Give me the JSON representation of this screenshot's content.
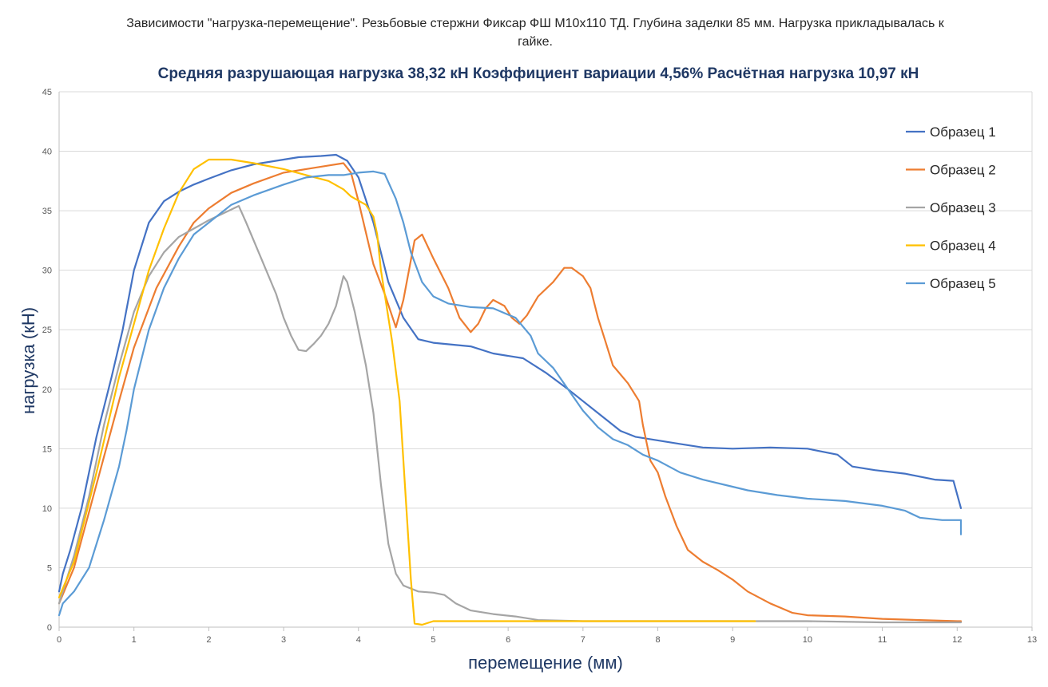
{
  "chart_data": {
    "type": "line",
    "title": "Зависимости \"нагрузка-перемещение\". Резьбовые стержни Фиксар ФШ М10х110 ТД. Глубина заделки 85 мм. Нагрузка прикладывалась к гайке.",
    "subtitle": "Средняя разрушающая нагрузка 38,32 кН  Коэффициент вариации 4,56%  Расчётная нагрузка 10,97 кН",
    "xlabel": "перемещение (мм)",
    "ylabel": "нагрузка (кН)",
    "xlim": [
      0,
      13
    ],
    "ylim": [
      0,
      45
    ],
    "xticks": [
      "0",
      "1",
      "2",
      "3",
      "4",
      "5",
      "6",
      "7",
      "8",
      "9",
      "10",
      "11",
      "12",
      "13"
    ],
    "yticks": [
      "0",
      "5",
      "10",
      "15",
      "20",
      "25",
      "30",
      "35",
      "40",
      "45"
    ],
    "grid": "horizontal",
    "legend_position": "right",
    "series": [
      {
        "name": "Образец 1",
        "color": "#4472c4",
        "points": [
          [
            0,
            3.0
          ],
          [
            0.05,
            4.5
          ],
          [
            0.15,
            6.5
          ],
          [
            0.3,
            10
          ],
          [
            0.5,
            16
          ],
          [
            0.7,
            21
          ],
          [
            0.85,
            25
          ],
          [
            1.0,
            30
          ],
          [
            1.2,
            34
          ],
          [
            1.4,
            35.8
          ],
          [
            1.6,
            36.6
          ],
          [
            1.8,
            37.2
          ],
          [
            2.0,
            37.7
          ],
          [
            2.3,
            38.4
          ],
          [
            2.6,
            38.9
          ],
          [
            3.0,
            39.3
          ],
          [
            3.2,
            39.5
          ],
          [
            3.5,
            39.6
          ],
          [
            3.7,
            39.7
          ],
          [
            3.85,
            39.2
          ],
          [
            4.0,
            37.8
          ],
          [
            4.2,
            34.0
          ],
          [
            4.4,
            29.0
          ],
          [
            4.6,
            26.0
          ],
          [
            4.8,
            24.2
          ],
          [
            5.0,
            23.9
          ],
          [
            5.5,
            23.6
          ],
          [
            5.8,
            23.0
          ],
          [
            6.2,
            22.6
          ],
          [
            6.5,
            21.4
          ],
          [
            6.8,
            20.0
          ],
          [
            7.0,
            19.0
          ],
          [
            7.3,
            17.5
          ],
          [
            7.5,
            16.5
          ],
          [
            7.7,
            16.0
          ],
          [
            8.0,
            15.7
          ],
          [
            8.3,
            15.4
          ],
          [
            8.6,
            15.1
          ],
          [
            9.0,
            15.0
          ],
          [
            9.5,
            15.1
          ],
          [
            10.0,
            15.0
          ],
          [
            10.4,
            14.5
          ],
          [
            10.6,
            13.5
          ],
          [
            10.9,
            13.2
          ],
          [
            11.3,
            12.9
          ],
          [
            11.7,
            12.4
          ],
          [
            11.95,
            12.3
          ],
          [
            12.05,
            10.0
          ]
        ]
      },
      {
        "name": "Образец 2",
        "color": "#ed7d31",
        "points": [
          [
            0,
            2.0
          ],
          [
            0.2,
            5.0
          ],
          [
            0.5,
            12
          ],
          [
            0.8,
            19
          ],
          [
            1.0,
            23.5
          ],
          [
            1.3,
            28.5
          ],
          [
            1.6,
            32
          ],
          [
            1.8,
            34
          ],
          [
            2.0,
            35.2
          ],
          [
            2.3,
            36.5
          ],
          [
            2.6,
            37.3
          ],
          [
            3.0,
            38.2
          ],
          [
            3.3,
            38.5
          ],
          [
            3.6,
            38.8
          ],
          [
            3.8,
            39.0
          ],
          [
            3.9,
            38.2
          ],
          [
            4.0,
            35.8
          ],
          [
            4.2,
            30.5
          ],
          [
            4.35,
            28.0
          ],
          [
            4.5,
            25.2
          ],
          [
            4.6,
            27.5
          ],
          [
            4.75,
            32.5
          ],
          [
            4.85,
            33.0
          ],
          [
            5.0,
            31.0
          ],
          [
            5.2,
            28.5
          ],
          [
            5.35,
            26.0
          ],
          [
            5.5,
            24.8
          ],
          [
            5.6,
            25.5
          ],
          [
            5.7,
            26.8
          ],
          [
            5.8,
            27.5
          ],
          [
            5.95,
            27.0
          ],
          [
            6.05,
            26.0
          ],
          [
            6.15,
            25.5
          ],
          [
            6.25,
            26.2
          ],
          [
            6.4,
            27.8
          ],
          [
            6.6,
            29.0
          ],
          [
            6.75,
            30.2
          ],
          [
            6.85,
            30.2
          ],
          [
            7.0,
            29.5
          ],
          [
            7.1,
            28.5
          ],
          [
            7.2,
            26.0
          ],
          [
            7.3,
            24.0
          ],
          [
            7.4,
            22.0
          ],
          [
            7.6,
            20.5
          ],
          [
            7.75,
            19.0
          ],
          [
            7.8,
            17.0
          ],
          [
            7.9,
            14.0
          ],
          [
            8.0,
            13.0
          ],
          [
            8.1,
            11.0
          ],
          [
            8.25,
            8.5
          ],
          [
            8.4,
            6.5
          ],
          [
            8.6,
            5.5
          ],
          [
            8.8,
            4.8
          ],
          [
            9.0,
            4.0
          ],
          [
            9.2,
            3.0
          ],
          [
            9.5,
            2.0
          ],
          [
            9.8,
            1.2
          ],
          [
            10.0,
            1.0
          ],
          [
            10.5,
            0.9
          ],
          [
            11.0,
            0.7
          ],
          [
            11.5,
            0.6
          ],
          [
            12.0,
            0.5
          ],
          [
            12.05,
            0.5
          ]
        ]
      },
      {
        "name": "Образец 3",
        "color": "#a5a5a5",
        "points": [
          [
            0,
            2.0
          ],
          [
            0.2,
            6.0
          ],
          [
            0.4,
            11
          ],
          [
            0.6,
            17
          ],
          [
            0.8,
            22
          ],
          [
            1.0,
            26.5
          ],
          [
            1.2,
            29.5
          ],
          [
            1.4,
            31.5
          ],
          [
            1.6,
            32.8
          ],
          [
            1.8,
            33.5
          ],
          [
            2.0,
            34.2
          ],
          [
            2.2,
            34.8
          ],
          [
            2.4,
            35.4
          ],
          [
            2.5,
            34.0
          ],
          [
            2.7,
            31.0
          ],
          [
            2.9,
            28.0
          ],
          [
            3.0,
            26.0
          ],
          [
            3.1,
            24.5
          ],
          [
            3.2,
            23.3
          ],
          [
            3.3,
            23.2
          ],
          [
            3.4,
            23.8
          ],
          [
            3.5,
            24.5
          ],
          [
            3.6,
            25.5
          ],
          [
            3.7,
            27.0
          ],
          [
            3.8,
            29.5
          ],
          [
            3.85,
            29.0
          ],
          [
            3.95,
            26.5
          ],
          [
            4.1,
            22.0
          ],
          [
            4.2,
            18.0
          ],
          [
            4.3,
            12.0
          ],
          [
            4.4,
            7.0
          ],
          [
            4.5,
            4.5
          ],
          [
            4.6,
            3.5
          ],
          [
            4.8,
            3.0
          ],
          [
            5.0,
            2.9
          ],
          [
            5.15,
            2.7
          ],
          [
            5.3,
            2.0
          ],
          [
            5.5,
            1.4
          ],
          [
            5.8,
            1.1
          ],
          [
            6.1,
            0.9
          ],
          [
            6.4,
            0.6
          ],
          [
            7.0,
            0.5
          ],
          [
            8.0,
            0.5
          ],
          [
            9.0,
            0.5
          ],
          [
            10.0,
            0.5
          ],
          [
            11.0,
            0.4
          ],
          [
            12.0,
            0.4
          ],
          [
            12.05,
            0.4
          ]
        ]
      },
      {
        "name": "Образец 4",
        "color": "#ffc000",
        "points": [
          [
            0,
            2.5
          ],
          [
            0.2,
            5.5
          ],
          [
            0.5,
            13
          ],
          [
            0.8,
            21
          ],
          [
            1.0,
            25.5
          ],
          [
            1.2,
            30
          ],
          [
            1.4,
            33.5
          ],
          [
            1.6,
            36.5
          ],
          [
            1.8,
            38.5
          ],
          [
            2.0,
            39.3
          ],
          [
            2.3,
            39.3
          ],
          [
            2.6,
            39.0
          ],
          [
            3.0,
            38.5
          ],
          [
            3.3,
            38.0
          ],
          [
            3.6,
            37.5
          ],
          [
            3.8,
            36.8
          ],
          [
            3.9,
            36.2
          ],
          [
            4.1,
            35.5
          ],
          [
            4.2,
            34.5
          ],
          [
            4.25,
            33.0
          ],
          [
            4.3,
            30.0
          ],
          [
            4.35,
            28.0
          ],
          [
            4.45,
            24.0
          ],
          [
            4.55,
            19.0
          ],
          [
            4.6,
            14.0
          ],
          [
            4.65,
            9.0
          ],
          [
            4.7,
            4.0
          ],
          [
            4.75,
            0.3
          ],
          [
            4.85,
            0.2
          ],
          [
            5.0,
            0.5
          ],
          [
            5.5,
            0.5
          ],
          [
            6.0,
            0.5
          ],
          [
            7.0,
            0.5
          ],
          [
            8.0,
            0.5
          ],
          [
            9.0,
            0.5
          ],
          [
            9.3,
            0.5
          ]
        ]
      },
      {
        "name": "Образец 5",
        "color": "#5b9bd5",
        "points": [
          [
            0,
            1.0
          ],
          [
            0.05,
            2.0
          ],
          [
            0.2,
            3.0
          ],
          [
            0.4,
            5.0
          ],
          [
            0.6,
            9.0
          ],
          [
            0.8,
            13.5
          ],
          [
            0.9,
            16.5
          ],
          [
            1.0,
            20.0
          ],
          [
            1.2,
            25.0
          ],
          [
            1.4,
            28.5
          ],
          [
            1.6,
            31.0
          ],
          [
            1.8,
            33.0
          ],
          [
            2.0,
            34.0
          ],
          [
            2.3,
            35.5
          ],
          [
            2.6,
            36.3
          ],
          [
            3.0,
            37.2
          ],
          [
            3.3,
            37.8
          ],
          [
            3.6,
            38.0
          ],
          [
            3.8,
            38.0
          ],
          [
            4.0,
            38.2
          ],
          [
            4.2,
            38.3
          ],
          [
            4.35,
            38.1
          ],
          [
            4.5,
            36.0
          ],
          [
            4.6,
            34.0
          ],
          [
            4.7,
            31.5
          ],
          [
            4.85,
            29.0
          ],
          [
            5.0,
            27.8
          ],
          [
            5.2,
            27.2
          ],
          [
            5.5,
            26.9
          ],
          [
            5.8,
            26.8
          ],
          [
            6.1,
            26.0
          ],
          [
            6.3,
            24.5
          ],
          [
            6.4,
            23.0
          ],
          [
            6.6,
            21.8
          ],
          [
            6.8,
            20.0
          ],
          [
            7.0,
            18.2
          ],
          [
            7.2,
            16.8
          ],
          [
            7.4,
            15.8
          ],
          [
            7.6,
            15.3
          ],
          [
            7.8,
            14.5
          ],
          [
            8.0,
            14.0
          ],
          [
            8.3,
            13.0
          ],
          [
            8.6,
            12.4
          ],
          [
            9.0,
            11.8
          ],
          [
            9.2,
            11.5
          ],
          [
            9.6,
            11.1
          ],
          [
            10.0,
            10.8
          ],
          [
            10.5,
            10.6
          ],
          [
            11.0,
            10.2
          ],
          [
            11.3,
            9.8
          ],
          [
            11.5,
            9.2
          ],
          [
            11.8,
            9.0
          ],
          [
            12.05,
            9.0
          ],
          [
            12.05,
            7.8
          ]
        ]
      }
    ]
  }
}
